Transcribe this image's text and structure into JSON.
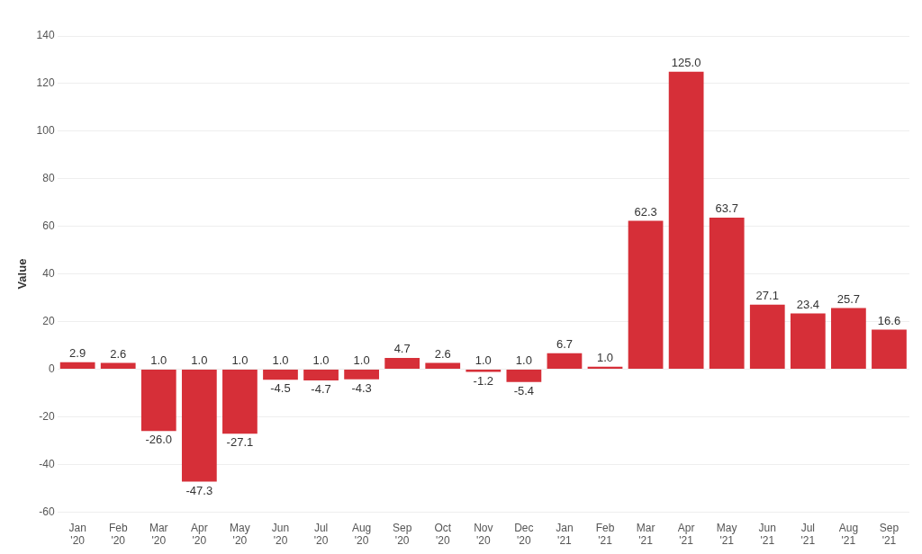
{
  "chart_data": {
    "type": "bar",
    "y_label": "Value",
    "categories": [
      "Jan '20",
      "Feb '20",
      "Mar '20",
      "Apr '20",
      "May '20",
      "Jun '20",
      "Jul '20",
      "Aug '20",
      "Sep '20",
      "Oct '20",
      "Nov '20",
      "Dec '20",
      "Jan '21",
      "Feb '21",
      "Mar '21",
      "Apr '21",
      "May '21",
      "Jun '21",
      "Jul '21",
      "Aug '21",
      "Sep '21"
    ],
    "values": [
      2.9,
      2.6,
      -26.0,
      -47.3,
      -27.1,
      -4.5,
      -4.7,
      -4.3,
      4.7,
      2.6,
      -1.2,
      -5.4,
      6.7,
      1.0,
      62.3,
      125.0,
      63.7,
      27.1,
      23.4,
      25.7,
      16.6
    ],
    "value_labels": [
      "2.9",
      "2.6",
      "-26.0",
      "-47.3",
      "-27.1",
      "-4.5",
      "-4.7",
      "-4.3",
      "4.7",
      "2.6",
      "-1.2",
      "-5.4",
      "6.7",
      "1.0",
      "62.3",
      "125.0",
      "63.7",
      "27.1",
      "23.4",
      "25.7",
      "16.6"
    ],
    "annotations": [
      {
        "category": "Mar '20",
        "text": "1.0"
      },
      {
        "category": "Apr '20",
        "text": "1.0"
      },
      {
        "category": "May '20",
        "text": "1.0"
      },
      {
        "category": "Jun '20",
        "text": "1.0"
      },
      {
        "category": "Jul '20",
        "text": "1.0"
      },
      {
        "category": "Aug '20",
        "text": "1.0"
      },
      {
        "category": "Nov '20",
        "text": "1.0"
      },
      {
        "category": "Dec '20",
        "text": "1.0"
      }
    ],
    "color": "#d62f38",
    "ylim": [
      -60,
      140
    ],
    "yticks": [
      -60,
      -40,
      -20,
      0,
      20,
      40,
      60,
      80,
      100,
      120,
      140
    ],
    "grid": true,
    "data_labels": true
  }
}
